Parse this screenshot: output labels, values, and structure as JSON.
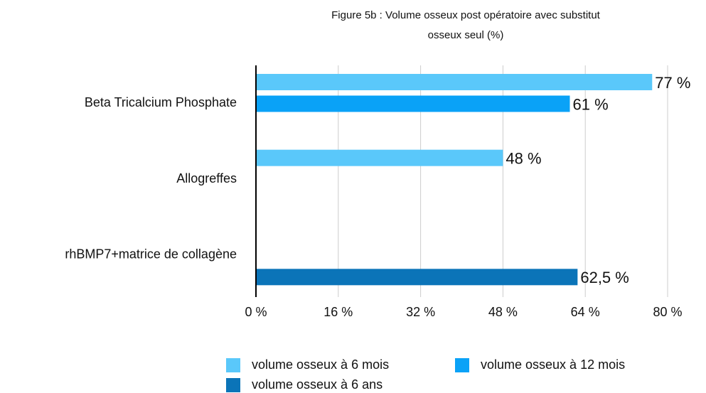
{
  "chart_data": {
    "type": "hbar",
    "title": "Figure 5b : Volume osseux post opératoire avec substitut osseux seul (%)",
    "categories": [
      "Beta Tricalcium Phosphate",
      "Allogreffes",
      "rhBMP7+matrice de collagène"
    ],
    "series": [
      {
        "name": "volume osseux à 6 mois",
        "color": "#5ac8fa",
        "values": [
          77,
          48,
          null
        ],
        "value_labels": [
          "77 %",
          "48 %",
          null
        ]
      },
      {
        "name": "volume osseux à 12 mois",
        "color": "#0aa2f7",
        "values": [
          61,
          null,
          null
        ],
        "value_labels": [
          "61 %",
          null,
          null
        ]
      },
      {
        "name": "volume osseux à 6 ans",
        "color": "#0b74b8",
        "values": [
          null,
          null,
          62.5
        ],
        "value_labels": [
          null,
          null,
          "62,5 %"
        ]
      }
    ],
    "xlim": [
      0,
      80
    ],
    "xticks": [
      {
        "value": 0,
        "label": "0 %"
      },
      {
        "value": 16,
        "label": "16 %"
      },
      {
        "value": 32,
        "label": "32 %"
      },
      {
        "value": 48,
        "label": "48 %"
      },
      {
        "value": 64,
        "label": "64 %"
      },
      {
        "value": 80,
        "label": "80 %"
      }
    ],
    "grid": true
  }
}
